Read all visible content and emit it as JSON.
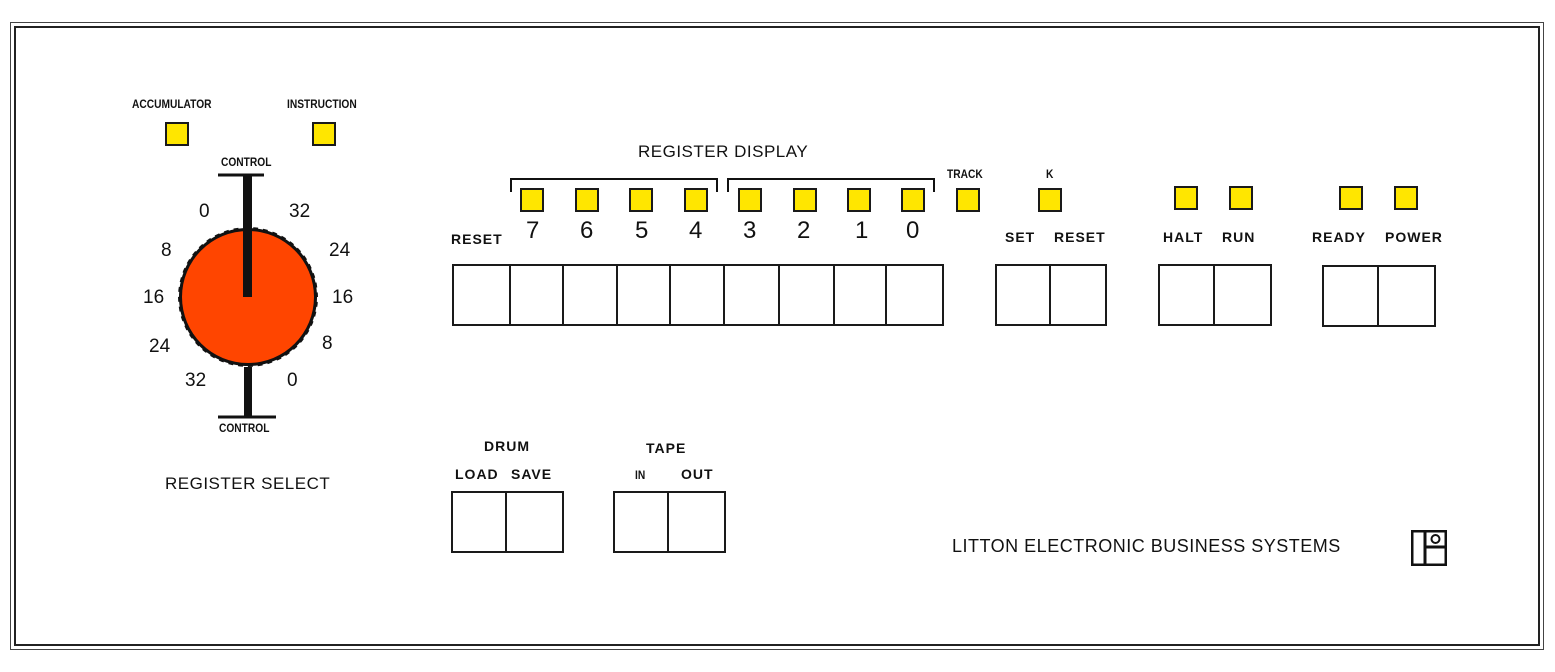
{
  "register_select": {
    "accumulator_label": "ACCUMULATOR",
    "instruction_label": "INSTRUCTION",
    "control_top": "CONTROL",
    "control_bottom": "CONTROL",
    "title": "REGISTER SELECT",
    "left_scale": [
      "0",
      "8",
      "16",
      "24",
      "32"
    ],
    "right_scale": [
      "32",
      "24",
      "16",
      "8",
      "0"
    ],
    "knob_color": "#ff4500"
  },
  "register_display": {
    "title": "REGISTER DISPLAY",
    "reset_label": "RESET",
    "bits": [
      "7",
      "6",
      "5",
      "4",
      "3",
      "2",
      "1",
      "0"
    ]
  },
  "track": {
    "label": "TRACK"
  },
  "k_group": {
    "label": "K",
    "set_label": "SET",
    "reset_label": "RESET"
  },
  "halt_run": {
    "halt_label": "HALT",
    "run_label": "RUN"
  },
  "ready_power": {
    "ready_label": "READY",
    "power_label": "POWER"
  },
  "drum": {
    "title": "DRUM",
    "load_label": "LOAD",
    "save_label": "SAVE"
  },
  "tape": {
    "title": "TAPE",
    "in_label": "IN",
    "out_label": "OUT"
  },
  "branding": {
    "text": "LITTON ELECTRONIC BUSINESS SYSTEMS",
    "logo_icon": "litton-logo-icon"
  },
  "colors": {
    "lamp": "#ffe600",
    "outline": "#1a1a1a"
  }
}
